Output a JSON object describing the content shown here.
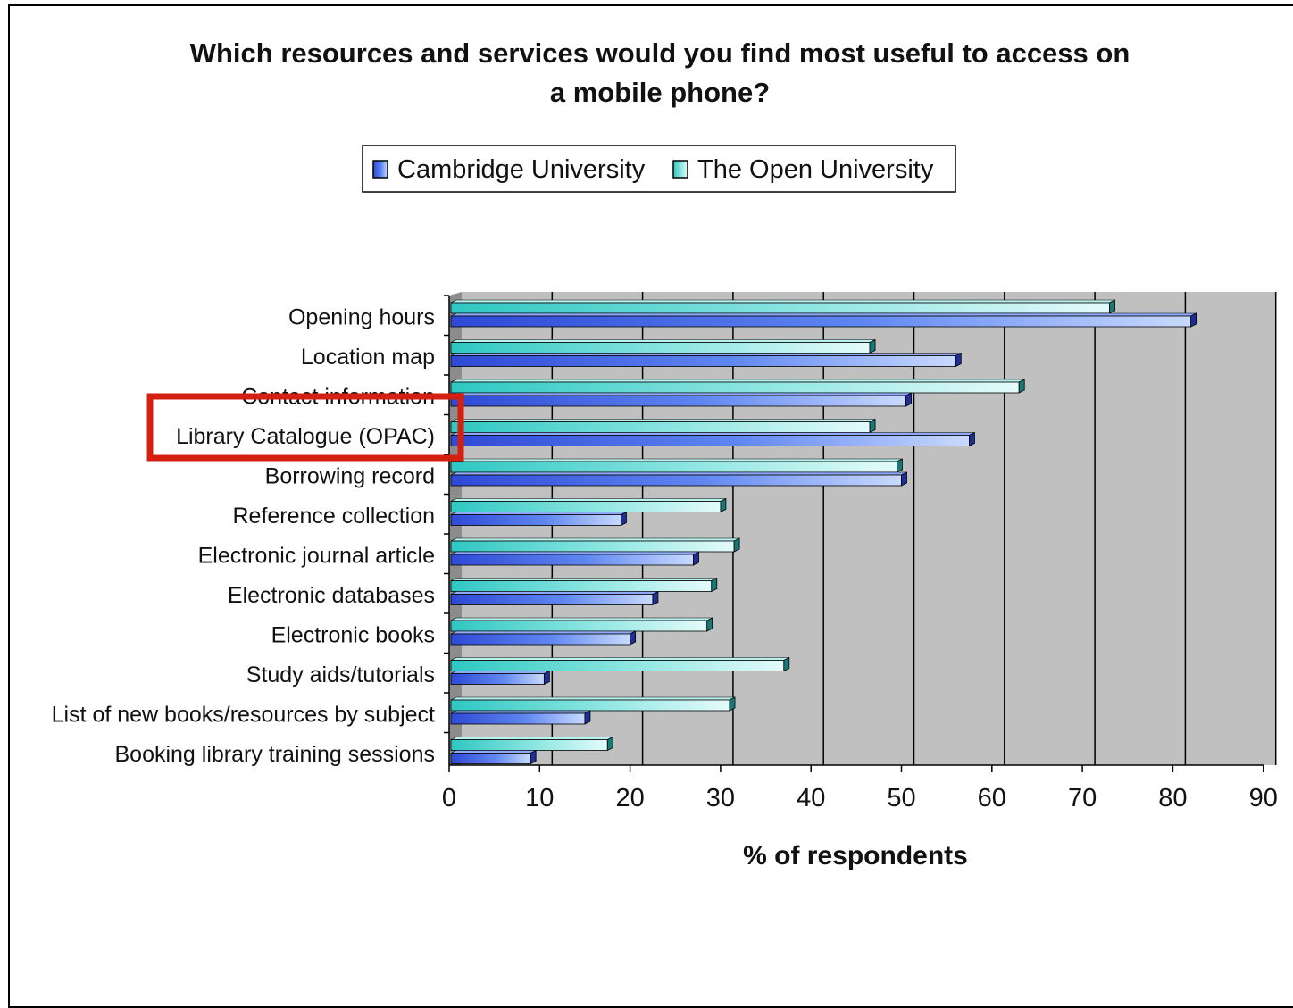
{
  "chart_data": {
    "type": "bar",
    "orientation": "horizontal",
    "title": "Which resources and services would you find most useful to access on a mobile phone?",
    "title_lines": [
      "Which resources and services would you find most useful to access on",
      "a mobile phone?"
    ],
    "xlabel": "% of respondents",
    "ylabel": "",
    "xlim": [
      0,
      90
    ],
    "x_ticks": [
      "0",
      "10",
      "20",
      "30",
      "40",
      "50",
      "60",
      "70",
      "80",
      "90"
    ],
    "grid": "vertical",
    "legend": "top-center",
    "categories": [
      "Opening hours",
      "Location map",
      "Contact information",
      "Library Catalogue (OPAC)",
      "Borrowing record",
      "Reference collection",
      "Electronic journal article",
      "Electronic databases",
      "Electronic books",
      "Study aids/tutorials",
      "List of new books/resources by subject",
      "Booking library training sessions"
    ],
    "series": [
      {
        "name": "Cambridge University",
        "values": [
          82,
          56,
          50.5,
          57.5,
          50,
          19,
          27,
          22.5,
          20,
          10.5,
          15,
          9
        ],
        "color": "#3a5be8"
      },
      {
        "name": "The Open University",
        "values": [
          73,
          46.5,
          63,
          46.5,
          49.5,
          30,
          31.5,
          29,
          28.5,
          37,
          31,
          17.5
        ],
        "color": "#3ccdc8"
      }
    ],
    "highlight": {
      "category": "Library Catalogue (OPAC)",
      "color": "#d42010"
    }
  }
}
